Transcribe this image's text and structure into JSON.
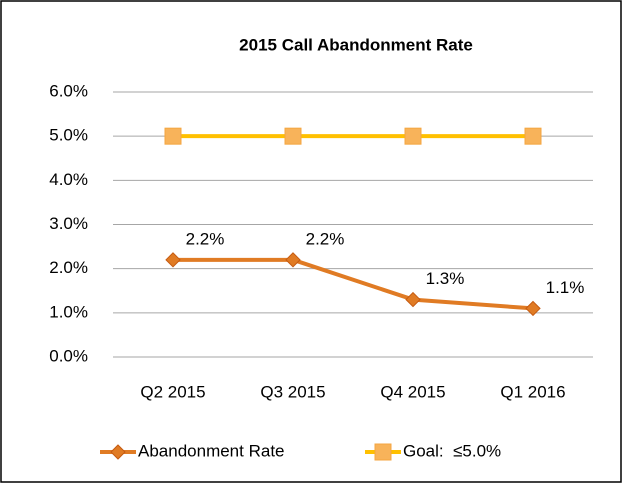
{
  "chart_data": {
    "type": "line",
    "title": "2015 Call Abandonment Rate",
    "categories": [
      "Q2 2015",
      "Q3 2015",
      "Q4 2015",
      "Q1 2016"
    ],
    "series": [
      {
        "name": "Abandonment Rate",
        "color": "#e07b24",
        "marker": "diamond",
        "values": [
          2.2,
          2.2,
          1.3,
          1.1
        ],
        "value_labels": [
          "2.2%",
          "2.2%",
          "1.3%",
          "1.1%"
        ]
      },
      {
        "name": "Goal:  ≤5.0%",
        "color": "#ffc000",
        "marker": "square",
        "values": [
          5,
          5,
          5,
          5
        ]
      }
    ],
    "ylim": [
      0,
      6
    ],
    "yticks": [
      {
        "value": 0,
        "label": "0.0%"
      },
      {
        "value": 1,
        "label": "1.0%"
      },
      {
        "value": 2,
        "label": "2.0%"
      },
      {
        "value": 3,
        "label": "3.0%"
      },
      {
        "value": 4,
        "label": "4.0%"
      },
      {
        "value": 5,
        "label": "5.0%"
      },
      {
        "value": 6,
        "label": "6.0%"
      }
    ],
    "grid": true,
    "legend": "bottom"
  }
}
